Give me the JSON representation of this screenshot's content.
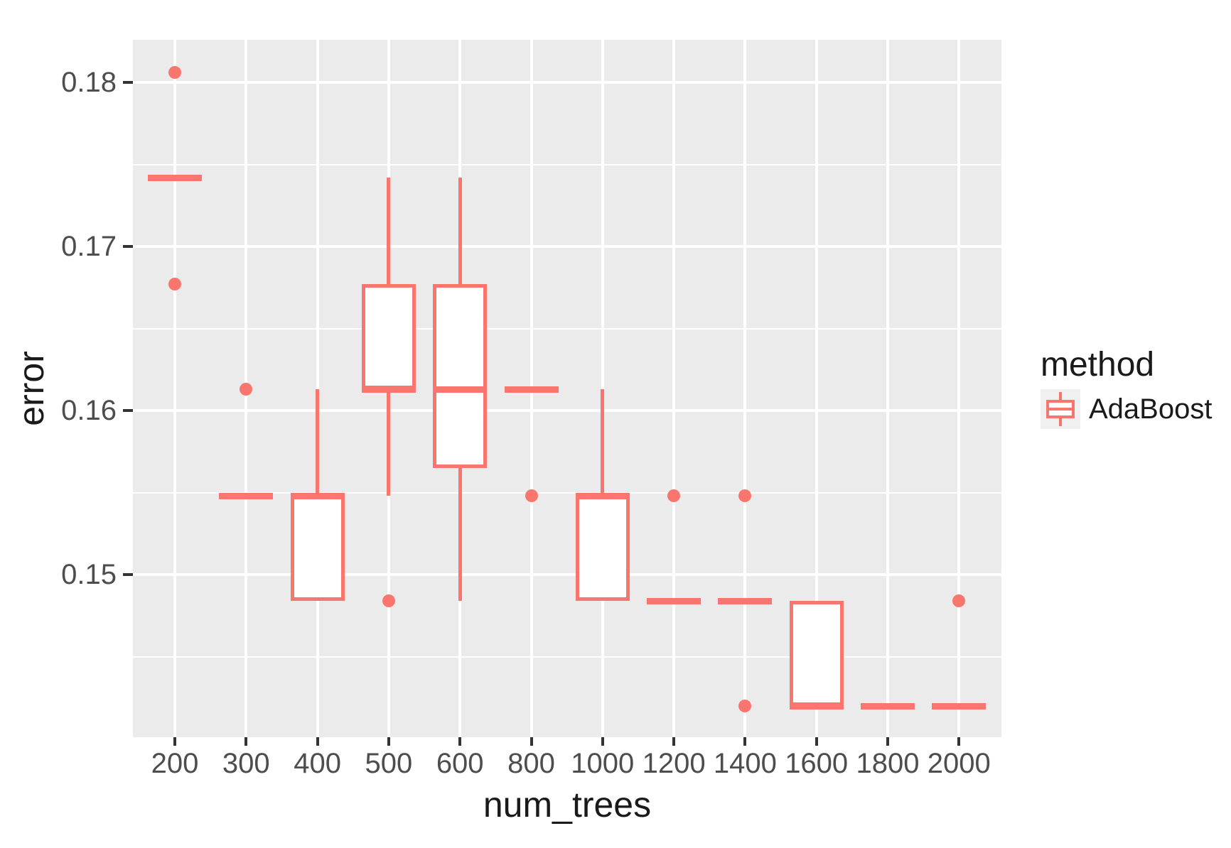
{
  "colors": {
    "accent": "#F8766D",
    "panel_bg": "#EBEBEB",
    "gridline": "#FFFFFF",
    "tick_mark": "#333333",
    "tick_label": "#4D4D4D",
    "axis_title": "#1A1A1A",
    "legend_key_bg": "#F0F0F0",
    "background": "#FFFFFF"
  },
  "chart_data": {
    "type": "boxplot",
    "title": "",
    "xlabel": "num_trees",
    "ylabel": "error",
    "x_categories": [
      "200",
      "300",
      "400",
      "500",
      "600",
      "800",
      "1000",
      "1200",
      "1400",
      "1600",
      "1800",
      "2000"
    ],
    "ylim": [
      0.1401,
      0.1826
    ],
    "y_major_ticks": [
      {
        "value": 0.15,
        "label": "0.15"
      },
      {
        "value": 0.16,
        "label": "0.16"
      },
      {
        "value": 0.17,
        "label": "0.17"
      },
      {
        "value": 0.18,
        "label": "0.18"
      }
    ],
    "y_minor_gridlines": [
      0.145,
      0.155,
      0.165,
      0.175
    ],
    "grid": "white major+minor horizontal lines and major vertical lines on grey panel",
    "legend": {
      "title": "method",
      "position": "right",
      "entries": [
        {
          "label": "AdaBoost",
          "color": "#F8766D"
        }
      ]
    },
    "series": [
      {
        "name": "AdaBoost",
        "color": "#F8766D",
        "boxes": [
          {
            "x": "200",
            "q1": 0.1742,
            "median": 0.1742,
            "q3": 0.1742,
            "whisker_low": null,
            "whisker_high": null,
            "outliers": [
              0.1806,
              0.1677
            ]
          },
          {
            "x": "300",
            "q1": 0.1548,
            "median": 0.1548,
            "q3": 0.1548,
            "whisker_low": null,
            "whisker_high": null,
            "outliers": [
              0.1613
            ]
          },
          {
            "x": "400",
            "q1": 0.1484,
            "median": 0.1548,
            "q3": 0.1548,
            "whisker_low": null,
            "whisker_high": 0.1613,
            "outliers": []
          },
          {
            "x": "500",
            "q1": 0.1613,
            "median": 0.1613,
            "q3": 0.1677,
            "whisker_low": 0.1548,
            "whisker_high": 0.1742,
            "outliers": [
              0.1484
            ]
          },
          {
            "x": "600",
            "q1": 0.1565,
            "median": 0.1613,
            "q3": 0.1677,
            "whisker_low": 0.1484,
            "whisker_high": 0.1742,
            "outliers": []
          },
          {
            "x": "800",
            "q1": 0.1613,
            "median": 0.1613,
            "q3": 0.1613,
            "whisker_low": null,
            "whisker_high": null,
            "outliers": [
              0.1548
            ]
          },
          {
            "x": "1000",
            "q1": 0.1484,
            "median": 0.1548,
            "q3": 0.1548,
            "whisker_low": null,
            "whisker_high": 0.1613,
            "outliers": []
          },
          {
            "x": "1200",
            "q1": 0.1484,
            "median": 0.1484,
            "q3": 0.1484,
            "whisker_low": null,
            "whisker_high": null,
            "outliers": [
              0.1548
            ]
          },
          {
            "x": "1400",
            "q1": 0.1484,
            "median": 0.1484,
            "q3": 0.1484,
            "whisker_low": null,
            "whisker_high": null,
            "outliers": [
              0.1548,
              0.142
            ]
          },
          {
            "x": "1600",
            "q1": 0.142,
            "median": 0.142,
            "q3": 0.1484,
            "whisker_low": null,
            "whisker_high": null,
            "outliers": []
          },
          {
            "x": "1800",
            "q1": 0.142,
            "median": 0.142,
            "q3": 0.142,
            "whisker_low": null,
            "whisker_high": null,
            "outliers": []
          },
          {
            "x": "2000",
            "q1": 0.142,
            "median": 0.142,
            "q3": 0.142,
            "whisker_low": null,
            "whisker_high": null,
            "outliers": [
              0.1484
            ]
          }
        ]
      }
    ]
  }
}
